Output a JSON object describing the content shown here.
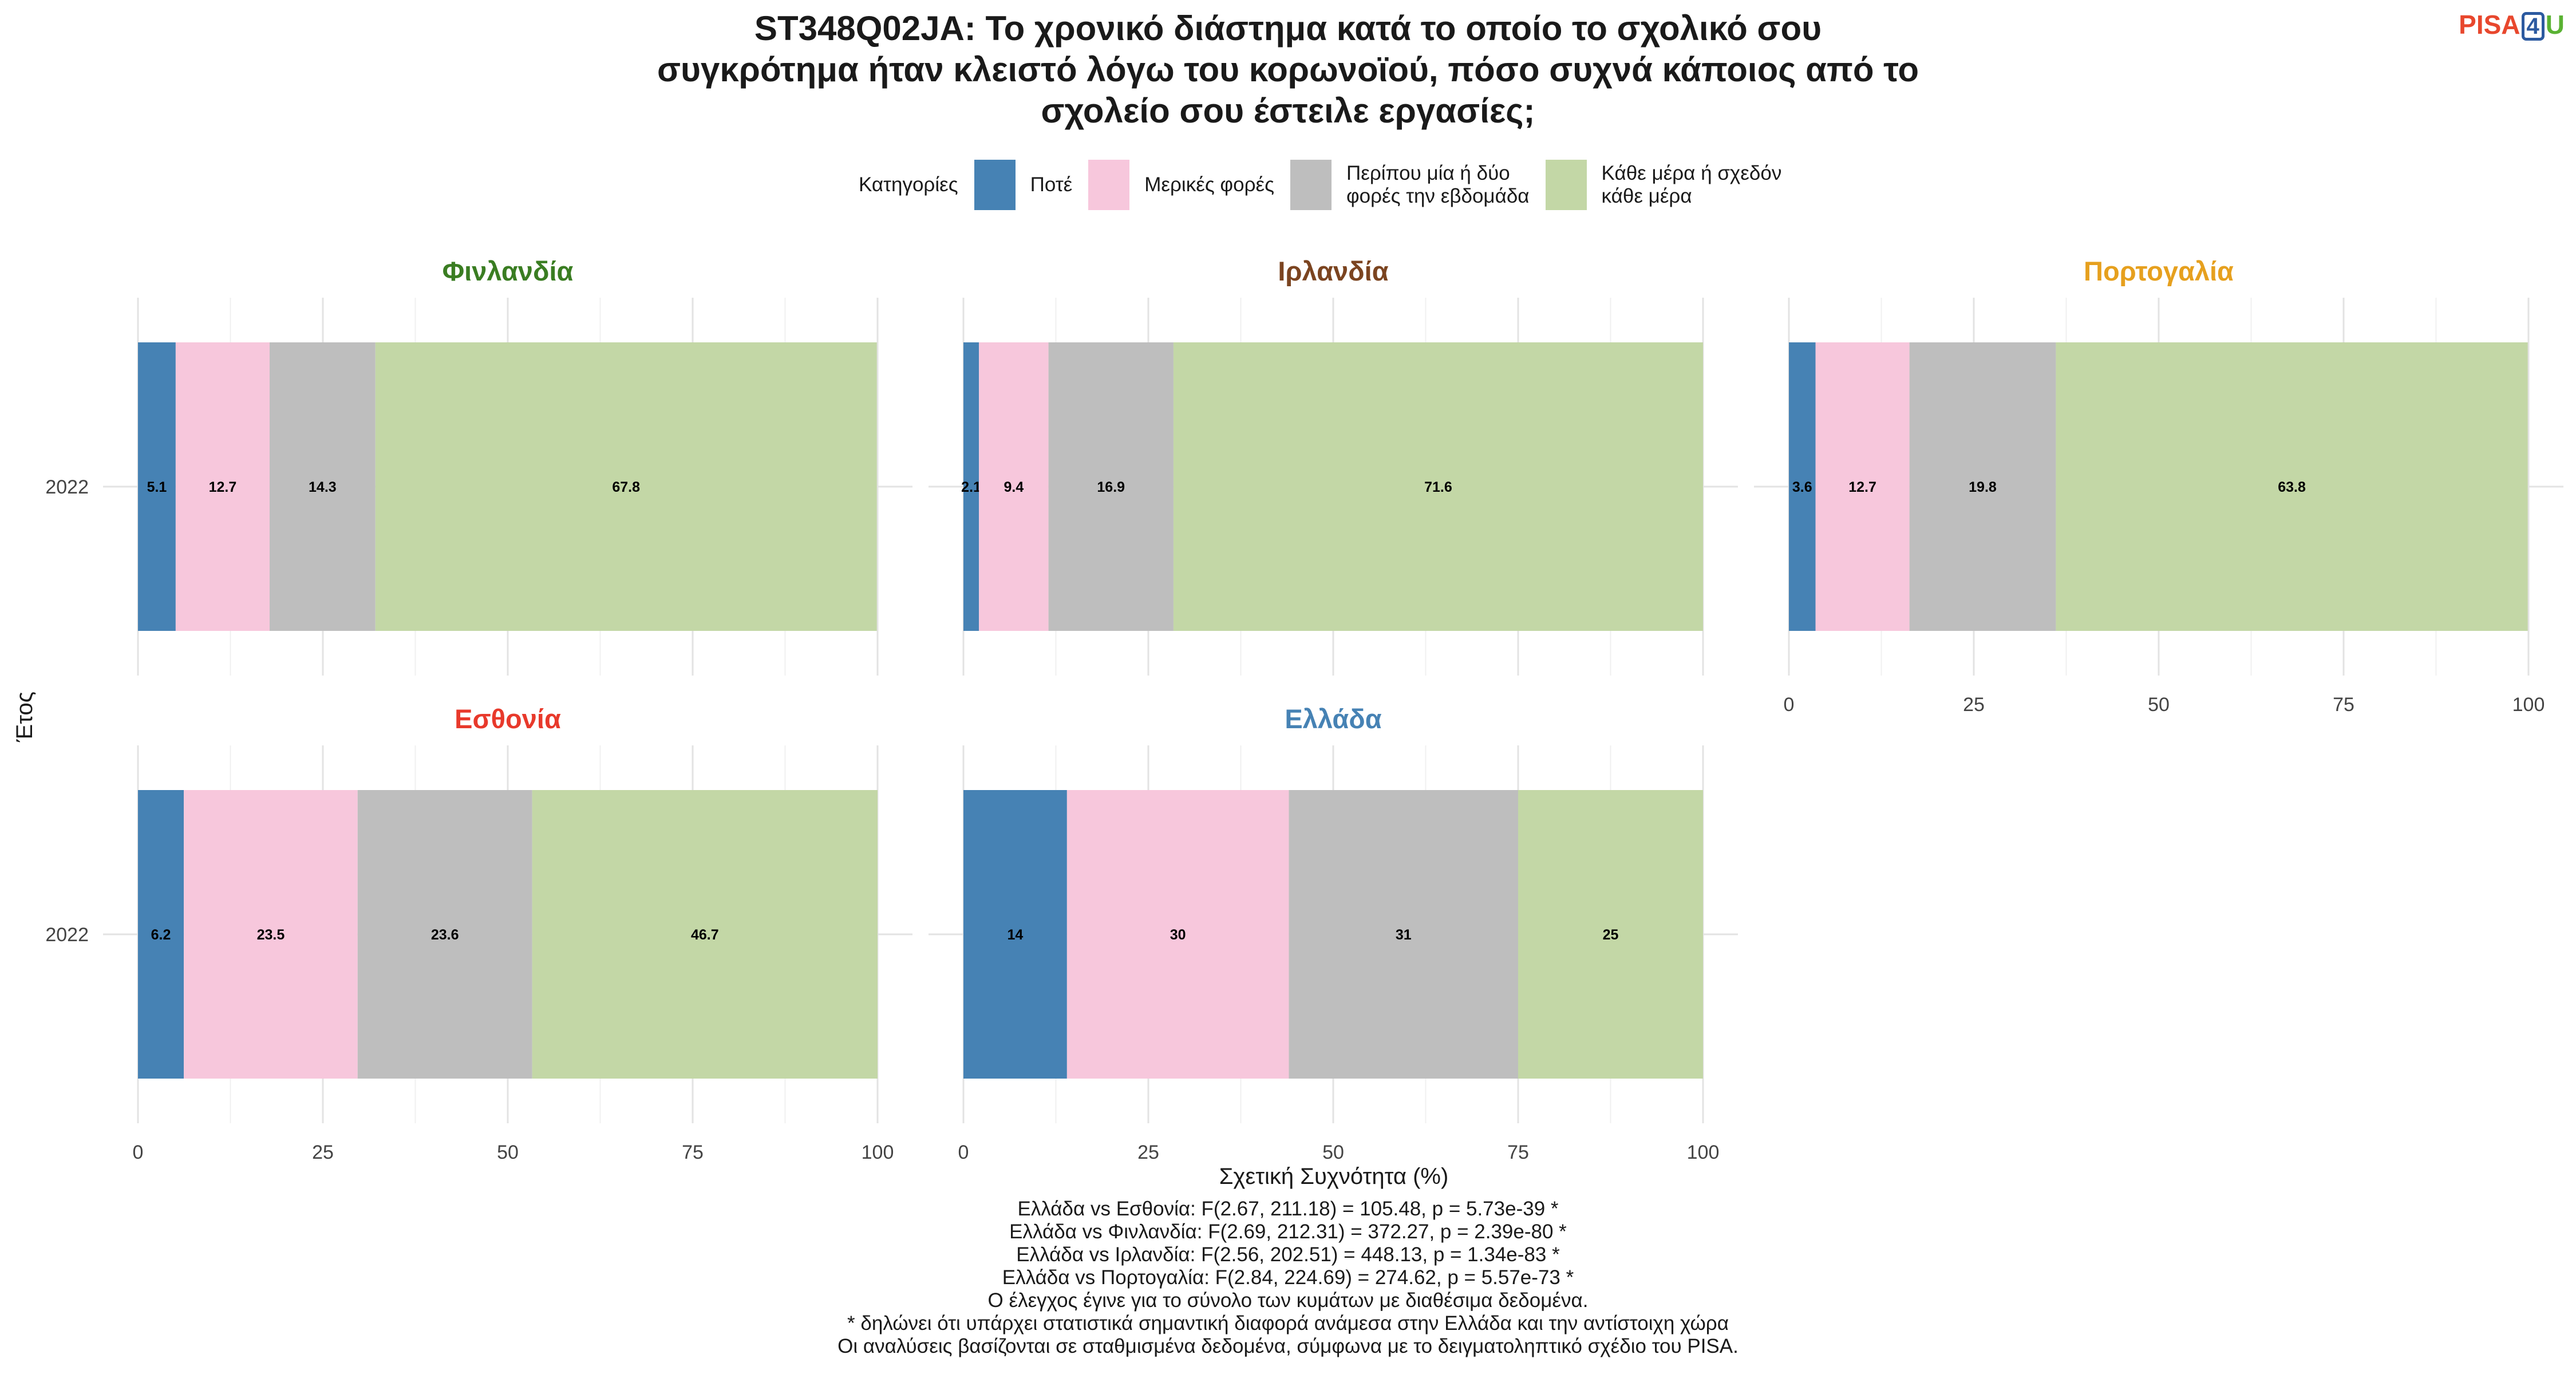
{
  "title": "ST348Q02JA: Το χρονικό διάστημα κατά το οποίο το σχολικό σου\nσυγκρότημα ήταν κλειστό λόγω του κορωνοϊού, πόσο συχνά κάποιος από το\nσχολείο σου έστειλε εργασίες;",
  "logo": {
    "part1": "PISA",
    "part2": "4",
    "part3": "U"
  },
  "legend": {
    "title": "Κατηγορίες",
    "items": [
      {
        "label": "Ποτέ",
        "color": "#4682b4"
      },
      {
        "label": "Μερικές φορές",
        "color": "#f7c7dc"
      },
      {
        "label": "Περίπου μία ή δύο\nφορές την εβδομάδα",
        "color": "#bebebe"
      },
      {
        "label": "Κάθε μέρα ή σχεδόν\nκάθε μέρα",
        "color": "#c3d7a6"
      }
    ]
  },
  "chart_data": {
    "type": "bar",
    "orientation": "horizontal",
    "stacked": true,
    "xlabel": "Σχετική Συχνότητα (%)",
    "ylabel": "Έτος",
    "xlim": [
      0,
      100
    ],
    "xticks": [
      0,
      25,
      50,
      75,
      100
    ],
    "grid": true,
    "legend_position": "top",
    "series_names": [
      "Ποτέ",
      "Μερικές φορές",
      "Περίπου μία ή δύο φορές την εβδομάδα",
      "Κάθε μέρα ή σχεδόν κάθε μέρα"
    ],
    "colors": [
      "#4682b4",
      "#f7c7dc",
      "#bebebe",
      "#c3d7a6"
    ],
    "panels": [
      {
        "name": "Φινλανδία",
        "color": "#3a7d22",
        "category": "2022",
        "values": [
          5.1,
          12.7,
          14.3,
          67.8
        ],
        "labels": [
          "5.1",
          "12.7",
          "14.3",
          "67.8"
        ]
      },
      {
        "name": "Ιρλανδία",
        "color": "#7b4420",
        "category": "2022",
        "values": [
          2.1,
          9.4,
          16.9,
          71.6
        ],
        "labels": [
          "2.1",
          "9.4",
          "16.9",
          "71.6"
        ]
      },
      {
        "name": "Πορτογαλία",
        "color": "#e6a01e",
        "category": "2022",
        "values": [
          3.6,
          12.7,
          19.8,
          63.8
        ],
        "labels": [
          "3.6",
          "12.7",
          "19.8",
          "63.8"
        ]
      },
      {
        "name": "Εσθονία",
        "color": "#e8392b",
        "category": "2022",
        "values": [
          6.2,
          23.5,
          23.6,
          46.7
        ],
        "labels": [
          "6.2",
          "23.5",
          "23.6",
          "46.7"
        ]
      },
      {
        "name": "Ελλάδα",
        "color": "#4682b4",
        "category": "2022",
        "values": [
          14,
          30,
          31,
          25
        ],
        "labels": [
          "14",
          "30",
          "31",
          "25"
        ]
      }
    ]
  },
  "notes": [
    "Ελλάδα vs Εσθονία: F(2.67, 211.18) = 105.48, p = 5.73e-39 *",
    "Ελλάδα vs Φινλανδία: F(2.69, 212.31) = 372.27, p = 2.39e-80 *",
    "Ελλάδα vs Ιρλανδία: F(2.56, 202.51) = 448.13, p = 1.34e-83 *",
    "Ελλάδα vs Πορτογαλία: F(2.84, 224.69) = 274.62, p = 5.57e-73 *",
    "Ο έλεγχος έγινε για το σύνολο των κυμάτων με διαθέσιμα δεδομένα.",
    "* δηλώνει ότι υπάρχει στατιστικά σημαντική διαφορά ανάμεσα στην Ελλάδα και την αντίστοιχη χώρα",
    "Οι αναλύσεις βασίζονται σε σταθμισμένα δεδομένα, σύμφωνα με το δειγματοληπτικό σχέδιο του PISA."
  ]
}
